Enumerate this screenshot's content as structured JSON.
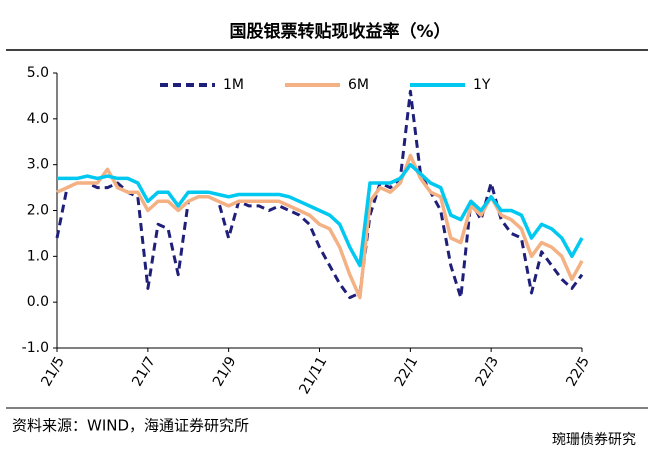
{
  "chart_data": {
    "type": "line",
    "title": "国股银票转贴现收益率（%）",
    "source": "资料来源：WIND，海通证券研究所",
    "watermark": "琬珊债券研究",
    "categories": [
      "21/5",
      null,
      null,
      null,
      null,
      null,
      null,
      null,
      null,
      "21/7",
      null,
      null,
      null,
      null,
      null,
      null,
      null,
      "21/9",
      null,
      null,
      null,
      null,
      null,
      null,
      null,
      null,
      "21/11",
      null,
      null,
      null,
      null,
      null,
      null,
      null,
      null,
      "22/1",
      null,
      null,
      null,
      null,
      null,
      null,
      null,
      "22/3",
      null,
      null,
      null,
      null,
      null,
      null,
      null,
      null,
      "22/5"
    ],
    "series": [
      {
        "name": "1M",
        "color": "#1f1f7a",
        "dashed": true,
        "values": [
          1.4,
          2.5,
          2.6,
          2.6,
          2.5,
          2.5,
          2.6,
          2.4,
          2.3,
          0.3,
          1.7,
          1.6,
          0.6,
          2.2,
          2.3,
          2.3,
          2.2,
          1.4,
          2.2,
          2.1,
          2.1,
          2.0,
          2.1,
          2.0,
          1.9,
          1.7,
          1.2,
          0.8,
          0.4,
          0.1,
          0.2,
          1.9,
          2.6,
          2.5,
          2.7,
          4.6,
          2.8,
          2.4,
          2.0,
          0.8,
          0.1,
          2.2,
          1.8,
          2.6,
          1.8,
          1.5,
          1.4,
          0.2,
          1.1,
          0.8,
          0.5,
          0.3,
          0.6
        ]
      },
      {
        "name": "6M",
        "color": "#f4b183",
        "dashed": false,
        "values": [
          2.4,
          2.5,
          2.6,
          2.6,
          2.6,
          2.9,
          2.5,
          2.4,
          2.4,
          2.0,
          2.2,
          2.2,
          2.0,
          2.2,
          2.3,
          2.3,
          2.2,
          2.1,
          2.2,
          2.2,
          2.2,
          2.2,
          2.2,
          2.1,
          2.0,
          1.9,
          1.7,
          1.6,
          1.2,
          0.6,
          0.1,
          2.2,
          2.5,
          2.4,
          2.6,
          3.2,
          2.7,
          2.4,
          2.3,
          1.4,
          1.3,
          2.1,
          1.9,
          2.3,
          1.9,
          1.8,
          1.6,
          1.0,
          1.3,
          1.2,
          1.0,
          0.5,
          0.9
        ]
      },
      {
        "name": "1Y",
        "color": "#00c8f0",
        "dashed": false,
        "values": [
          2.7,
          2.7,
          2.7,
          2.75,
          2.7,
          2.75,
          2.7,
          2.7,
          2.6,
          2.2,
          2.4,
          2.4,
          2.1,
          2.4,
          2.4,
          2.4,
          2.35,
          2.3,
          2.35,
          2.35,
          2.35,
          2.35,
          2.35,
          2.3,
          2.2,
          2.1,
          2.0,
          1.9,
          1.7,
          1.2,
          0.8,
          2.6,
          2.6,
          2.6,
          2.7,
          3.0,
          2.8,
          2.6,
          2.5,
          1.9,
          1.8,
          2.2,
          2.0,
          2.3,
          2.0,
          2.0,
          1.9,
          1.4,
          1.7,
          1.6,
          1.4,
          1.0,
          1.4
        ]
      }
    ],
    "ylim": [
      -1,
      5
    ],
    "yticks": [
      {
        "value": -1,
        "label": "-1.0"
      },
      {
        "value": 0,
        "label": "0.0"
      },
      {
        "value": 1,
        "label": "1.0"
      },
      {
        "value": 2,
        "label": "2.0"
      },
      {
        "value": 3,
        "label": "3.0"
      },
      {
        "value": 4,
        "label": "4.0"
      },
      {
        "value": 5,
        "label": "5.0"
      }
    ],
    "legend": "top"
  }
}
